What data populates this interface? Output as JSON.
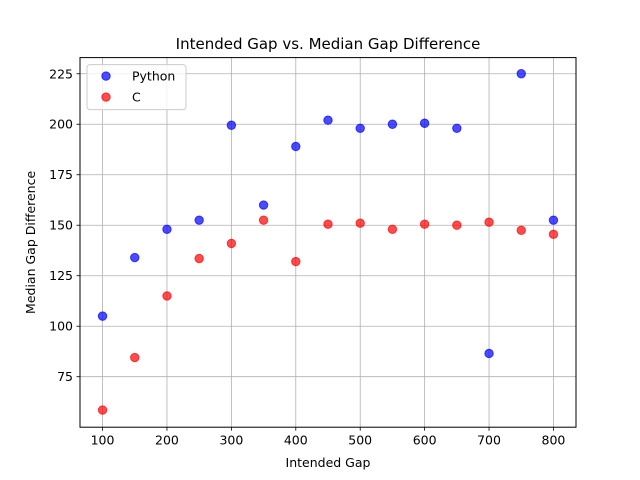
{
  "chart_data": {
    "type": "scatter",
    "title": "Intended Gap vs. Median Gap Difference",
    "xlabel": "Intended Gap",
    "ylabel": "Median Gap Difference",
    "xlim": [
      65,
      835
    ],
    "ylim": [
      50,
      233
    ],
    "xticks": [
      100,
      200,
      300,
      400,
      500,
      600,
      700,
      800
    ],
    "yticks": [
      75,
      100,
      125,
      150,
      175,
      200,
      225
    ],
    "grid": true,
    "legend_position": "top-left",
    "series": [
      {
        "name": "Python",
        "color": "#0000ff",
        "x": [
          100,
          150,
          200,
          250,
          300,
          350,
          400,
          450,
          500,
          550,
          600,
          650,
          700,
          750,
          800
        ],
        "y": [
          105,
          134,
          148,
          152.5,
          199.5,
          160,
          189,
          202,
          198,
          200,
          200.5,
          198,
          86.5,
          225,
          152.5
        ]
      },
      {
        "name": "C",
        "color": "#ff0000",
        "x": [
          100,
          150,
          200,
          250,
          300,
          350,
          400,
          450,
          500,
          550,
          600,
          650,
          700,
          750,
          800
        ],
        "y": [
          58.5,
          84.5,
          115,
          133.5,
          141,
          152.5,
          132,
          150.5,
          151,
          148,
          150.5,
          150,
          151.5,
          147.5,
          145.5
        ]
      }
    ]
  }
}
